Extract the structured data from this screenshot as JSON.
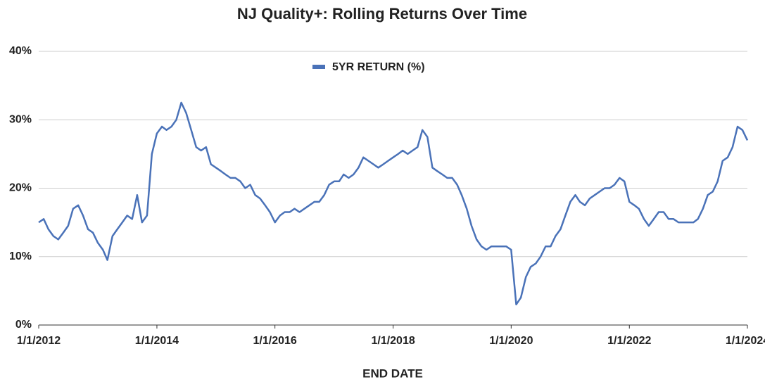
{
  "chart_data": {
    "type": "line",
    "title": "NJ Quality+: Rolling Returns Over Time",
    "x_label": "END DATE",
    "x": [
      "2012-01-01",
      "2012-02-01",
      "2012-03-01",
      "2012-04-01",
      "2012-05-01",
      "2012-06-01",
      "2012-07-01",
      "2012-08-01",
      "2012-09-01",
      "2012-10-01",
      "2012-11-01",
      "2012-12-01",
      "2013-01-01",
      "2013-02-01",
      "2013-03-01",
      "2013-04-01",
      "2013-05-01",
      "2013-06-01",
      "2013-07-01",
      "2013-08-01",
      "2013-09-01",
      "2013-10-01",
      "2013-11-01",
      "2013-12-01",
      "2014-01-01",
      "2014-02-01",
      "2014-03-01",
      "2014-04-01",
      "2014-05-01",
      "2014-06-01",
      "2014-07-01",
      "2014-08-01",
      "2014-09-01",
      "2014-10-01",
      "2014-11-01",
      "2014-12-01",
      "2015-01-01",
      "2015-02-01",
      "2015-03-01",
      "2015-04-01",
      "2015-05-01",
      "2015-06-01",
      "2015-07-01",
      "2015-08-01",
      "2015-09-01",
      "2015-10-01",
      "2015-11-01",
      "2015-12-01",
      "2016-01-01",
      "2016-02-01",
      "2016-03-01",
      "2016-04-01",
      "2016-05-01",
      "2016-06-01",
      "2016-07-01",
      "2016-08-01",
      "2016-09-01",
      "2016-10-01",
      "2016-11-01",
      "2016-12-01",
      "2017-01-01",
      "2017-02-01",
      "2017-03-01",
      "2017-04-01",
      "2017-05-01",
      "2017-06-01",
      "2017-07-01",
      "2017-08-01",
      "2017-09-01",
      "2017-10-01",
      "2017-11-01",
      "2017-12-01",
      "2018-01-01",
      "2018-02-01",
      "2018-03-01",
      "2018-04-01",
      "2018-05-01",
      "2018-06-01",
      "2018-07-01",
      "2018-08-01",
      "2018-09-01",
      "2018-10-01",
      "2018-11-01",
      "2018-12-01",
      "2019-01-01",
      "2019-02-01",
      "2019-03-01",
      "2019-04-01",
      "2019-05-01",
      "2019-06-01",
      "2019-07-01",
      "2019-08-01",
      "2019-09-01",
      "2019-10-01",
      "2019-11-01",
      "2019-12-01",
      "2020-01-01",
      "2020-02-01",
      "2020-03-01",
      "2020-04-01",
      "2020-05-01",
      "2020-06-01",
      "2020-07-01",
      "2020-08-01",
      "2020-09-01",
      "2020-10-01",
      "2020-11-01",
      "2020-12-01",
      "2021-01-01",
      "2021-02-01",
      "2021-03-01",
      "2021-04-01",
      "2021-05-01",
      "2021-06-01",
      "2021-07-01",
      "2021-08-01",
      "2021-09-01",
      "2021-10-01",
      "2021-11-01",
      "2021-12-01",
      "2022-01-01",
      "2022-02-01",
      "2022-03-01",
      "2022-04-01",
      "2022-05-01",
      "2022-06-01",
      "2022-07-01",
      "2022-08-01",
      "2022-09-01",
      "2022-10-01",
      "2022-11-01",
      "2022-12-01",
      "2023-01-01",
      "2023-02-01",
      "2023-03-01",
      "2023-04-01",
      "2023-05-01",
      "2023-06-01",
      "2023-07-01",
      "2023-08-01",
      "2023-09-01",
      "2023-10-01",
      "2023-11-01",
      "2023-12-01",
      "2024-01-01"
    ],
    "series": [
      {
        "name": "5YR RETURN (%)",
        "color": "#4a72b8",
        "values": [
          15,
          15.5,
          14,
          13,
          12.5,
          13.5,
          14.5,
          17,
          17.5,
          16,
          14,
          13.5,
          12,
          11,
          9.5,
          13,
          14,
          15,
          16,
          15.5,
          19,
          15,
          16,
          25,
          28,
          29,
          28.5,
          29,
          30,
          32.5,
          31,
          28.5,
          26,
          25.5,
          26,
          23.5,
          23,
          22.5,
          22,
          21.5,
          21.5,
          21,
          20,
          20.5,
          19,
          18.5,
          17.5,
          16.5,
          15,
          16,
          16.5,
          16.5,
          17,
          16.5,
          17,
          17.5,
          18,
          18,
          19,
          20.5,
          21,
          21,
          22,
          21.5,
          22,
          23,
          24.5,
          24,
          23.5,
          23,
          23.5,
          24,
          24.5,
          25,
          25.5,
          25,
          25.5,
          26,
          28.5,
          27.5,
          23,
          22.5,
          22,
          21.5,
          21.5,
          20.5,
          19,
          17,
          14.5,
          12.5,
          11.5,
          11,
          11.5,
          11.5,
          11.5,
          11.5,
          11,
          3,
          4,
          7,
          8.5,
          9,
          10,
          11.5,
          11.5,
          13,
          14,
          16,
          18,
          19,
          18,
          17.5,
          18.5,
          19,
          19.5,
          20,
          20,
          20.5,
          21.5,
          21,
          18,
          17.5,
          17,
          15.5,
          14.5,
          15.5,
          16.5,
          16.5,
          15.5,
          15.5,
          15,
          15,
          15,
          15,
          15.5,
          17,
          19,
          19.5,
          21,
          24,
          24.5,
          26,
          29,
          28.5,
          27
        ]
      }
    ],
    "xlim": [
      "2012-01-01",
      "2024-01-01"
    ],
    "xticks": [
      {
        "value": "2012-01-01",
        "label": "1/1/2012"
      },
      {
        "value": "2014-01-01",
        "label": "1/1/2014"
      },
      {
        "value": "2016-01-01",
        "label": "1/1/2016"
      },
      {
        "value": "2018-01-01",
        "label": "1/1/2018"
      },
      {
        "value": "2020-01-01",
        "label": "1/1/2020"
      },
      {
        "value": "2022-01-01",
        "label": "1/1/2022"
      },
      {
        "value": "2024-01-01",
        "label": "1/1/2024"
      }
    ],
    "ylim": [
      0,
      40
    ],
    "yticks": [
      {
        "value": 0,
        "label": "0%"
      },
      {
        "value": 10,
        "label": "10%"
      },
      {
        "value": 20,
        "label": "20%"
      },
      {
        "value": 30,
        "label": "30%"
      },
      {
        "value": 40,
        "label": "40%"
      }
    ],
    "grid": true,
    "legend": "top"
  }
}
